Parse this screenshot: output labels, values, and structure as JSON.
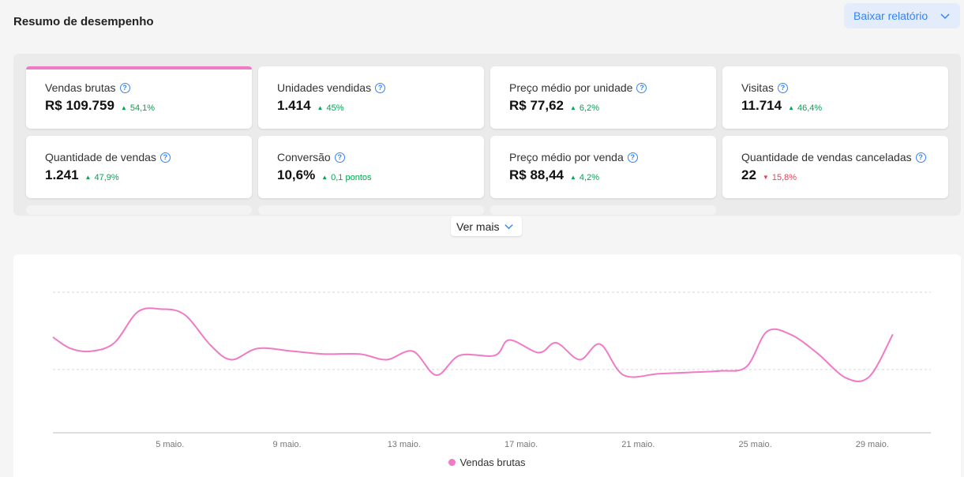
{
  "header": {
    "title": "Resumo de desempenho",
    "download_label": "Baixar relatório"
  },
  "metrics": [
    {
      "label": "Vendas brutas",
      "value": "R$ 109.759",
      "delta": "54,1%",
      "trend": "up",
      "active": true
    },
    {
      "label": "Unidades vendidas",
      "value": "1.414",
      "delta": "45%",
      "trend": "up"
    },
    {
      "label": "Preço médio por unidade",
      "value": "R$ 77,62",
      "delta": "6,2%",
      "trend": "up"
    },
    {
      "label": "Visitas",
      "value": "11.714",
      "delta": "46,4%",
      "trend": "up"
    },
    {
      "label": "Quantidade de vendas",
      "value": "1.241",
      "delta": "47,9%",
      "trend": "up"
    },
    {
      "label": "Conversão",
      "value": "10,6%",
      "delta": "0,1 pontos",
      "trend": "up"
    },
    {
      "label": "Preço médio por venda",
      "value": "R$ 88,44",
      "delta": "4,2%",
      "trend": "up"
    },
    {
      "label": "Quantidade de vendas canceladas",
      "value": "22",
      "delta": "15,8%",
      "trend": "down"
    }
  ],
  "see_more_label": "Ver mais",
  "colors": {
    "accent": "#3483fa",
    "series": "#f07ac6",
    "up": "#00a650",
    "down": "#f23d4f"
  },
  "chart_data": {
    "type": "line",
    "tick_labels": [
      "5 maio.",
      "9 maio.",
      "13 maio.",
      "17 maio.",
      "21 maio.",
      "25 maio.",
      "29 maio."
    ],
    "x_day_start": 2,
    "x_day_end": 31,
    "series": [
      {
        "name": "Vendas brutas",
        "points": [
          [
            1,
            68
          ],
          [
            1.6,
            60
          ],
          [
            2.3,
            58
          ],
          [
            3.1,
            64
          ],
          [
            3.9,
            86
          ],
          [
            4.7,
            88
          ],
          [
            5.5,
            84
          ],
          [
            6.4,
            62
          ],
          [
            7.1,
            52
          ],
          [
            8.0,
            60
          ],
          [
            9.2,
            58
          ],
          [
            10.3,
            56
          ],
          [
            11.5,
            56
          ],
          [
            12.4,
            52
          ],
          [
            13.3,
            58
          ],
          [
            14.1,
            41
          ],
          [
            14.9,
            55
          ],
          [
            16.1,
            55
          ],
          [
            16.6,
            66
          ],
          [
            17.6,
            57
          ],
          [
            18.2,
            64
          ],
          [
            19.0,
            52
          ],
          [
            19.7,
            63
          ],
          [
            20.5,
            41
          ],
          [
            21.7,
            42
          ],
          [
            22.8,
            43
          ],
          [
            23.8,
            44
          ],
          [
            24.7,
            47
          ],
          [
            25.4,
            72
          ],
          [
            26.2,
            70
          ],
          [
            27.1,
            57
          ],
          [
            28.1,
            39
          ],
          [
            28.9,
            40
          ],
          [
            29.7,
            70
          ]
        ]
      }
    ],
    "legend": [
      "Vendas brutas"
    ],
    "grid": true,
    "legend_position": "bottom-center"
  }
}
